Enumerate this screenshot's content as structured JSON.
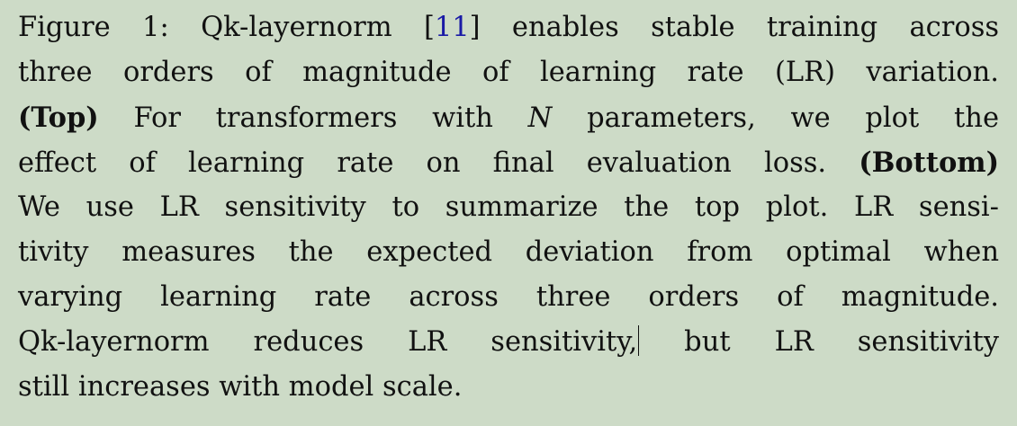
{
  "caption": {
    "label": "Figure 1:",
    "l1_pre": "Qk-layernorm [",
    "ref": "11",
    "l1_post": "] enables stable training across",
    "l2": "three orders of magnitude of learning rate (LR) variation.",
    "l3_bold": "(Top)",
    "l3_a": " For transformers with ",
    "l3_var": "N",
    "l3_b": " parameters, we plot the",
    "l4_a": "effect of learning rate on final evaluation loss. ",
    "l4_bold": "(Bottom)",
    "l5": "We use LR sensitivity to summarize the top plot. LR sensi-",
    "l6": "tivity measures the expected deviation from optimal when",
    "l7": "varying learning rate across three orders of magnitude.",
    "l8_a": "Qk-layernorm reduces LR sensitivity,",
    "l8_b": " but LR sensitivity",
    "l9": "still increases with model scale."
  }
}
